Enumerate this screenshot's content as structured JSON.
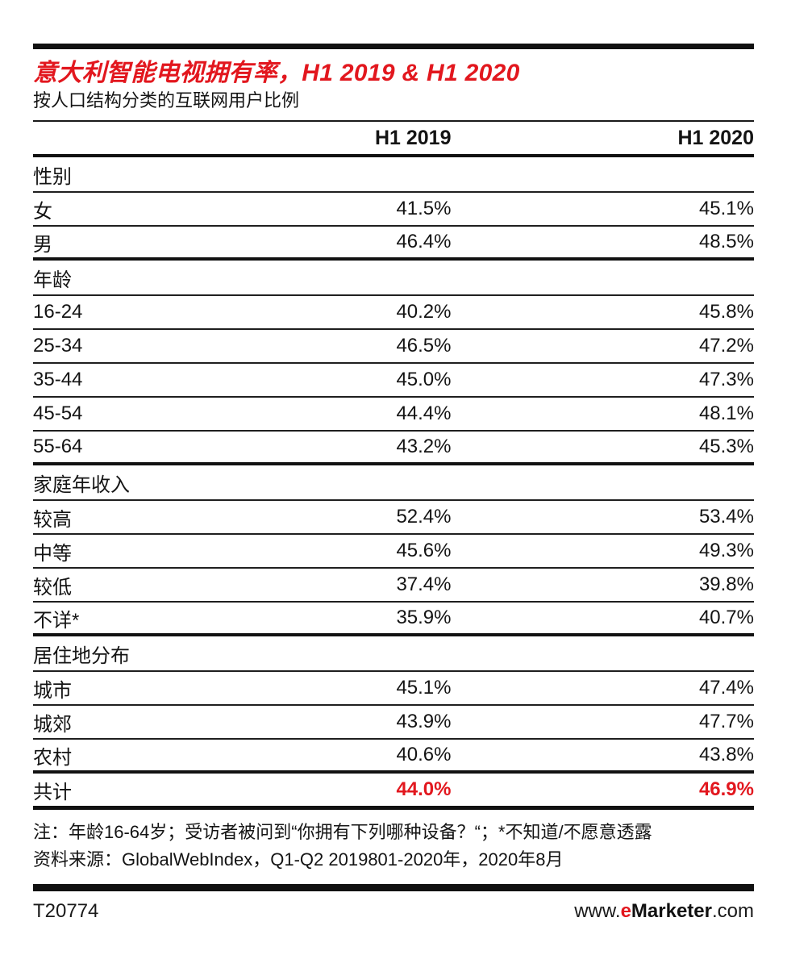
{
  "colors": {
    "accent_red": "#e2171e",
    "text_black": "#141414",
    "rule_black": "#111111"
  },
  "chart_data": {
    "type": "table",
    "title": "意大利智能电视拥有率，H1 2019 & H1 2020",
    "subtitle": "按人口结构分类的互联网用户比例",
    "columns": [
      "",
      "H1 2019",
      "H1 2020"
    ],
    "sections": [
      {
        "header": "性别",
        "rows": [
          [
            "女",
            "41.5%",
            "45.1%"
          ],
          [
            "男",
            "46.4%",
            "48.5%"
          ]
        ]
      },
      {
        "header": "年龄",
        "rows": [
          [
            "16-24",
            "40.2%",
            "45.8%"
          ],
          [
            "25-34",
            "46.5%",
            "47.2%"
          ],
          [
            "35-44",
            "45.0%",
            "47.3%"
          ],
          [
            "45-54",
            "44.4%",
            "48.1%"
          ],
          [
            "55-64",
            "43.2%",
            "45.3%"
          ]
        ]
      },
      {
        "header": "家庭年收入",
        "rows": [
          [
            "较高",
            "52.4%",
            "53.4%"
          ],
          [
            "中等",
            "45.6%",
            "49.3%"
          ],
          [
            "较低",
            "37.4%",
            "39.8%"
          ],
          [
            "不详*",
            "35.9%",
            "40.7%"
          ]
        ]
      },
      {
        "header": "居住地分布",
        "rows": [
          [
            "城市",
            "45.1%",
            "47.4%"
          ],
          [
            "城郊",
            "43.9%",
            "47.7%"
          ],
          [
            "农村",
            "40.6%",
            "43.8%"
          ]
        ]
      }
    ],
    "total": {
      "label": "共计",
      "values": [
        "44.0%",
        "46.9%"
      ]
    }
  },
  "footnotes": {
    "note": "注：年龄16-64岁；受访者被问到“你拥有下列哪种设备？“；*不知道/不愿意透露",
    "source": "资料来源：GlobalWebIndex，Q1-Q2 2019801-2020年，2020年8月"
  },
  "footer": {
    "chart_id": "T20774",
    "url_prefix": "www.",
    "brand_e": "e",
    "brand_rest": "Marketer",
    "url_suffix": ".com"
  }
}
